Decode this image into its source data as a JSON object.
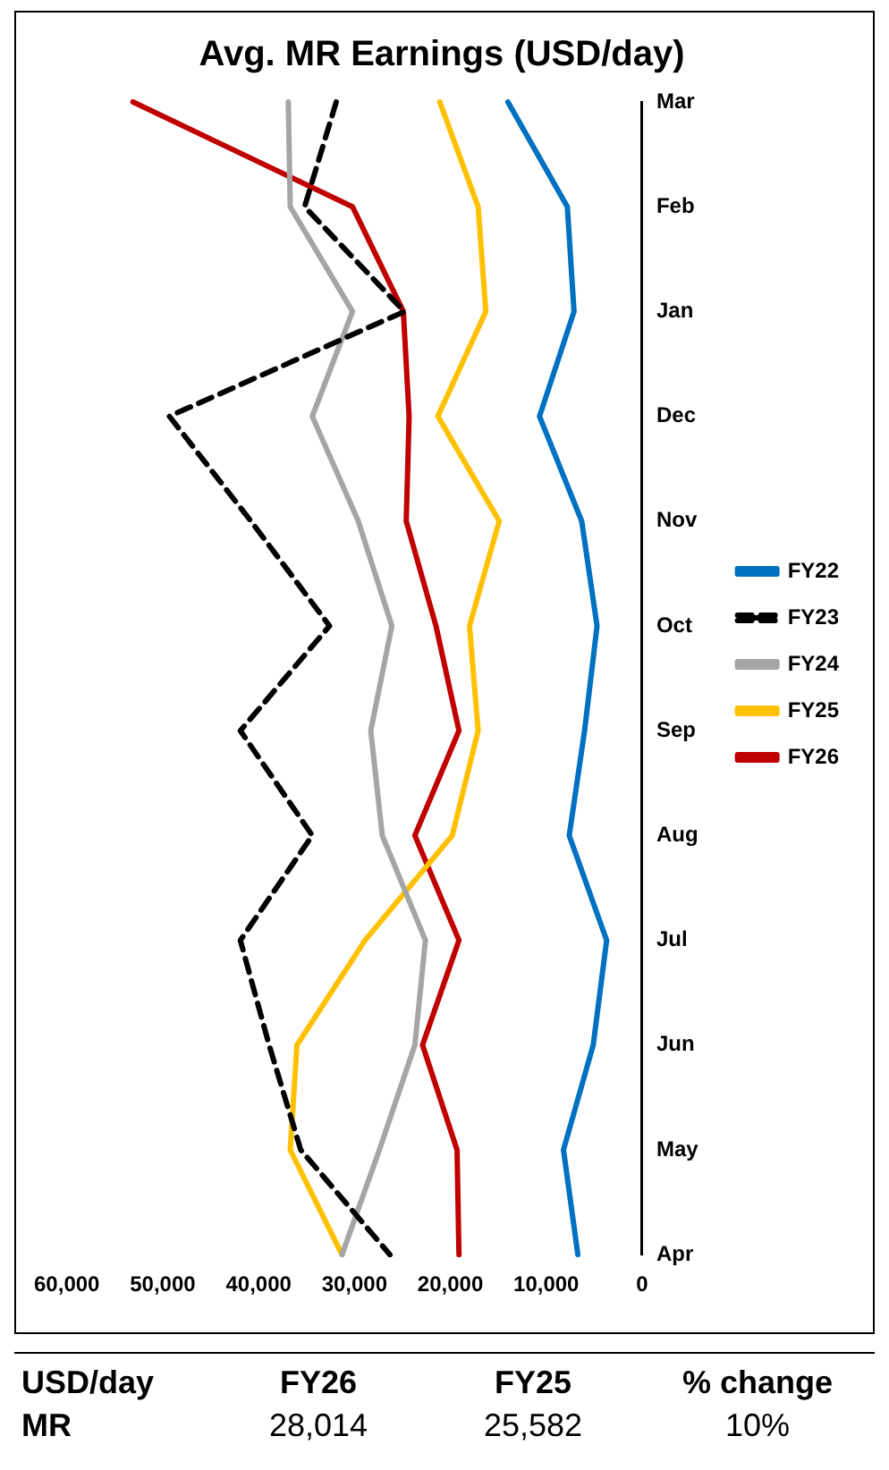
{
  "chart_data": {
    "type": "line",
    "orientation": "horizontal",
    "title": "Avg. MR Earnings (USD/day)",
    "categories": [
      "Mar",
      "Feb",
      "Jan",
      "Dec",
      "Nov",
      "Oct",
      "Sep",
      "Aug",
      "Jul",
      "Jun",
      "May",
      "Apr"
    ],
    "series": [
      {
        "name": "FY22",
        "color": "#0070c0",
        "values": [
          14000,
          7800,
          7100,
          10700,
          6300,
          4700,
          6000,
          7600,
          3700,
          5100,
          8200,
          6700
        ]
      },
      {
        "name": "FY23",
        "color": "#000000",
        "line_style": "dashed",
        "values": [
          31900,
          35200,
          24800,
          49300,
          40800,
          32600,
          41900,
          34400,
          41900,
          38900,
          35600,
          26300
        ]
      },
      {
        "name": "FY24",
        "color": "#a5a5a5",
        "values": [
          36900,
          36700,
          30200,
          34400,
          29600,
          26100,
          28300,
          27100,
          22600,
          23700,
          27400,
          31300
        ]
      },
      {
        "name": "FY25",
        "color": "#ffc000",
        "values": [
          21100,
          17100,
          16300,
          21300,
          14900,
          18000,
          17100,
          19800,
          28900,
          36000,
          36700,
          31300
        ]
      },
      {
        "name": "FY26",
        "color": "#c00000",
        "values": [
          53100,
          30200,
          24900,
          24300,
          24600,
          21500,
          19100,
          23700,
          19100,
          22900,
          19300,
          19100
        ]
      }
    ],
    "xlim": [
      60000,
      0
    ],
    "xticks": [
      {
        "value": 60000,
        "label": "60,000"
      },
      {
        "value": 50000,
        "label": "50,000"
      },
      {
        "value": 40000,
        "label": "40,000"
      },
      {
        "value": 30000,
        "label": "30,000"
      },
      {
        "value": 20000,
        "label": "20,000"
      },
      {
        "value": 10000,
        "label": "10,000"
      },
      0
    ],
    "grid": false,
    "legend": "right",
    "marker": "none",
    "line_style": "solid",
    "annotations": [
      "USD/day",
      "FY26",
      "FY25",
      "% change",
      "MR",
      "28,014",
      "25,582",
      "10%"
    ]
  }
}
